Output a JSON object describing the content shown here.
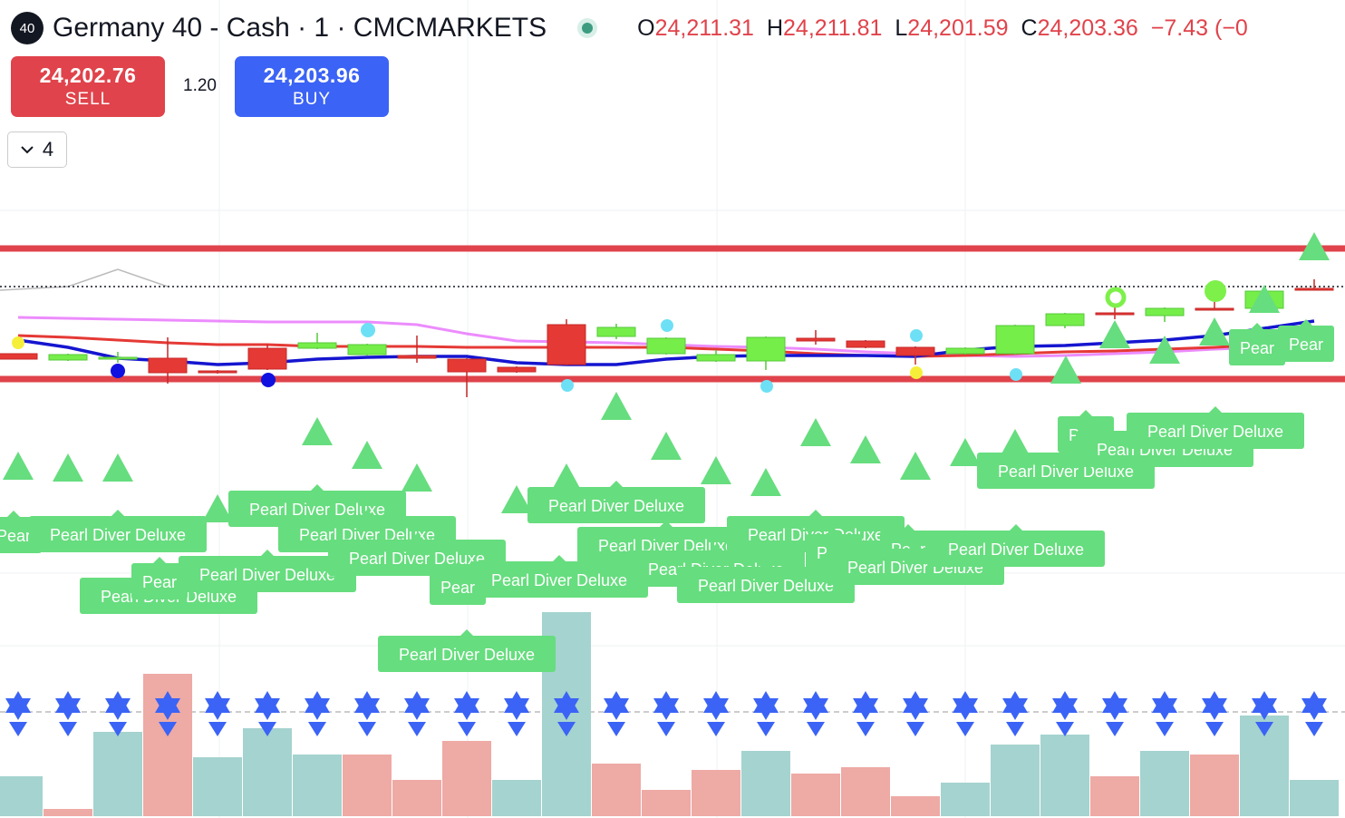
{
  "header": {
    "badge": "40",
    "title": "Germany 40 - Cash · 1 · CMCMARKETS",
    "ohlc": [
      {
        "label": "O",
        "value": "24,211.31"
      },
      {
        "label": "H",
        "value": "24,211.81"
      },
      {
        "label": "L",
        "value": "24,201.59"
      },
      {
        "label": "C",
        "value": "24,203.36"
      }
    ],
    "change": "−7.43 (−0"
  },
  "trade": {
    "sell_price": "24,202.76",
    "sell_label": "SELL",
    "spread": "1.20",
    "buy_price": "24,203.96",
    "buy_label": "BUY"
  },
  "indicators": {
    "count": "4"
  },
  "chart_data": {
    "type": "candlestick",
    "ylim": [
      24174,
      24216
    ],
    "up_color": "#76ee4a",
    "down_color": "#e53935",
    "candles": {
      "open": [
        24199.5,
        24199.15,
        24199.25,
        24199.25,
        24198.55,
        24199.8,
        24199.8,
        24199.45,
        24199.4,
        24199.2,
        24198.75,
        24201.1,
        24200.45,
        24199.5,
        24199.1,
        24199.1,
        24200.35,
        24200.2,
        24199.85,
        24199.5,
        24199.5,
        24201.05,
        24201.75,
        24201.6,
        24202.0,
        24202.0,
        24203.1
      ],
      "high": [
        24199.5,
        24199.5,
        24199.6,
        24200.4,
        24198.6,
        24200.0,
        24200.65,
        24200.05,
        24200.5,
        24199.25,
        24198.8,
        24201.4,
        24201.15,
        24200.4,
        24199.7,
        24200.45,
        24200.8,
        24200.25,
        24199.9,
        24199.85,
        24201.1,
        24201.75,
        24202.1,
        24202.05,
        24202.35,
        24203.0,
        24203.6
      ],
      "low": [
        24199.2,
        24199.1,
        24199.0,
        24197.85,
        24198.4,
        24198.6,
        24199.75,
        24199.4,
        24199.0,
        24197.1,
        24198.45,
        24198.85,
        24200.3,
        24199.45,
        24199.05,
        24198.6,
        24200.0,
        24199.8,
        24198.9,
        24199.45,
        24199.45,
        24200.9,
        24201.4,
        24201.25,
        24201.9,
        24201.95,
        24203.0
      ],
      "close": [
        24199.2,
        24199.45,
        24199.3,
        24198.45,
        24198.45,
        24198.65,
        24200.1,
        24200.0,
        24199.25,
        24198.5,
        24198.5,
        24198.9,
        24200.95,
        24200.35,
        24199.45,
        24200.4,
        24200.2,
        24199.85,
        24199.4,
        24199.8,
        24201.05,
        24201.7,
        24201.65,
        24202.0,
        24201.95,
        24202.95,
        24203.05
      ]
    },
    "levels": [
      {
        "value": 24205.3,
        "color": "#e0434b",
        "style": "solid"
      },
      {
        "value": 24198.1,
        "color": "#e0434b",
        "style": "solid"
      },
      {
        "value": 24203.2,
        "color": "#131722",
        "style": "dotted"
      }
    ],
    "lines": [
      {
        "color": "#e040fb",
        "values": [
          24201.5,
          24201.45,
          24201.4,
          24201.35,
          24201.3,
          24201.25,
          24201.25,
          24201.25,
          24201.1,
          24200.6,
          24200.2,
          24200.15,
          24200.1,
          24200.0,
          24199.9,
          24199.85,
          24199.75,
          24199.6,
          24199.5,
          24199.4,
          24199.35,
          24199.4,
          24199.5,
          24199.6,
          24199.75,
          24199.85,
          24200.0
        ]
      },
      {
        "color": "#e53935",
        "values": [
          24200.5,
          24200.4,
          24200.25,
          24200.1,
          24200.0,
          24200.0,
          24199.9,
          24199.9,
          24199.9,
          24199.85,
          24199.85,
          24199.85,
          24199.85,
          24199.85,
          24199.75,
          24199.65,
          24199.5,
          24199.4,
          24199.35,
          24199.4,
          24199.5,
          24199.6,
          24199.65,
          24199.75,
          24199.85,
          24200.0,
          24200.1
        ]
      },
      {
        "color": "#1515d0",
        "values": [
          24200.25,
          24199.85,
          24199.25,
          24199.1,
          24198.9,
          24199.0,
          24199.2,
          24199.3,
          24199.35,
          24199.35,
          24199.0,
          24198.9,
          24198.9,
          24199.2,
          24199.35,
          24199.4,
          24199.4,
          24199.4,
          24199.35,
          24199.7,
          24199.9,
          24199.95,
          24200.1,
          24200.25,
          24200.5,
          24200.9,
          24201.3
        ]
      }
    ],
    "volume": {
      "values": [
        44,
        8,
        93,
        157,
        65,
        97,
        68,
        68,
        40,
        83,
        40,
        225,
        58,
        29,
        51,
        72,
        47,
        54,
        22,
        37,
        79,
        90,
        44,
        72,
        68,
        111,
        40
      ],
      "colors": [
        "#a5d3cf",
        "#eeaaa5",
        "#a5d3cf",
        "#eeaaa5",
        "#a5d3cf",
        "#a5d3cf",
        "#a5d3cf",
        "#eeaaa5",
        "#eeaaa5",
        "#eeaaa5",
        "#a5d3cf",
        "#a5d3cf",
        "#eeaaa5",
        "#eeaaa5",
        "#eeaaa5",
        "#a5d3cf",
        "#eeaaa5",
        "#eeaaa5",
        "#eeaaa5",
        "#a5d3cf",
        "#a5d3cf",
        "#a5d3cf",
        "#eeaaa5",
        "#a5d3cf",
        "#eeaaa5",
        "#a5d3cf",
        "#a5d3cf"
      ]
    },
    "signal_labels": [
      "Pear",
      "Pearl Diver Deluxe",
      "Pearl Diver Deluxe",
      "Pearl Diver Deluxe",
      "Pearl Diver Deluxe",
      "Pearl Diver Deluxe",
      "Pearl Diver Deluxe",
      "Pear",
      "Pearl Diver Deluxe",
      "Pear",
      "Pearl Diver Deluxe",
      "Pearl Diver Deluxe",
      "Pearl Diver Deluxe",
      "Pearl Diver Deluxe",
      "Pearl Diver Deluxe",
      "Pear",
      "Pearl Diver Deluxe",
      "Pear",
      "Pearl Diver Deluxe",
      "Pearl Diver Deluxe",
      "Pear",
      "Pearl Diver Deluxe",
      "Pearl Diver Deluxe",
      "Pearl Diver Deluxe",
      "Pear",
      "Pear"
    ]
  }
}
